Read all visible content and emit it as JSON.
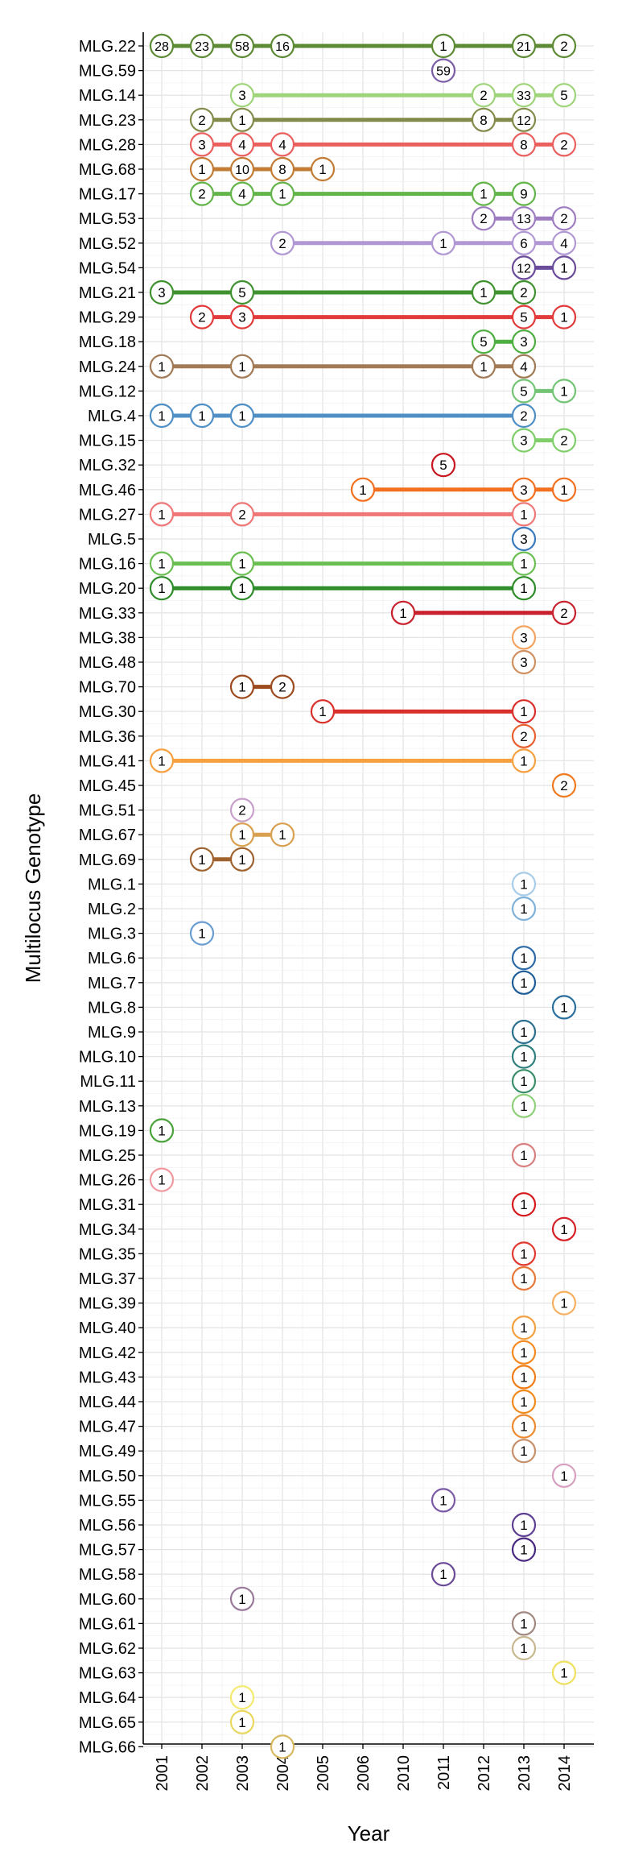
{
  "chart_data": {
    "type": "scatter",
    "xlabel": "Year",
    "ylabel": "Multilocus Genotype",
    "x_categories": [
      "2001",
      "2002",
      "2003",
      "2004",
      "2005",
      "2006",
      "2010",
      "2011",
      "2012",
      "2013",
      "2014"
    ],
    "grid": true,
    "legend": "none",
    "series": [
      {
        "name": "MLG.22",
        "color": "#5d8a35",
        "points": [
          {
            "x": "2001",
            "y": 28
          },
          {
            "x": "2002",
            "y": 23
          },
          {
            "x": "2003",
            "y": 58
          },
          {
            "x": "2004",
            "y": 16
          },
          {
            "x": "2011",
            "y": 1
          },
          {
            "x": "2013",
            "y": 21
          },
          {
            "x": "2014",
            "y": 2
          }
        ]
      },
      {
        "name": "MLG.59",
        "color": "#7b5ea7",
        "points": [
          {
            "x": "2011",
            "y": 59
          }
        ]
      },
      {
        "name": "MLG.14",
        "color": "#9fd47a",
        "points": [
          {
            "x": "2003",
            "y": 3
          },
          {
            "x": "2012",
            "y": 2
          },
          {
            "x": "2013",
            "y": 33
          },
          {
            "x": "2014",
            "y": 5
          }
        ]
      },
      {
        "name": "MLG.23",
        "color": "#838a4a",
        "points": [
          {
            "x": "2002",
            "y": 2
          },
          {
            "x": "2003",
            "y": 1
          },
          {
            "x": "2012",
            "y": 8
          },
          {
            "x": "2013",
            "y": 12
          }
        ]
      },
      {
        "name": "MLG.28",
        "color": "#e9605f",
        "points": [
          {
            "x": "2002",
            "y": 3
          },
          {
            "x": "2003",
            "y": 4
          },
          {
            "x": "2004",
            "y": 4
          },
          {
            "x": "2013",
            "y": 8
          },
          {
            "x": "2014",
            "y": 2
          }
        ]
      },
      {
        "name": "MLG.68",
        "color": "#c27c35",
        "points": [
          {
            "x": "2002",
            "y": 1
          },
          {
            "x": "2003",
            "y": 10
          },
          {
            "x": "2004",
            "y": 8
          },
          {
            "x": "2005",
            "y": 1
          }
        ]
      },
      {
        "name": "MLG.17",
        "color": "#63b44a",
        "points": [
          {
            "x": "2002",
            "y": 2
          },
          {
            "x": "2003",
            "y": 4
          },
          {
            "x": "2004",
            "y": 1
          },
          {
            "x": "2012",
            "y": 1
          },
          {
            "x": "2013",
            "y": 9
          }
        ]
      },
      {
        "name": "MLG.53",
        "color": "#9e7dc1",
        "points": [
          {
            "x": "2012",
            "y": 2
          },
          {
            "x": "2013",
            "y": 13
          },
          {
            "x": "2014",
            "y": 2
          }
        ]
      },
      {
        "name": "MLG.52",
        "color": "#b197d4",
        "points": [
          {
            "x": "2004",
            "y": 2
          },
          {
            "x": "2011",
            "y": 1
          },
          {
            "x": "2013",
            "y": 6
          },
          {
            "x": "2014",
            "y": 4
          }
        ]
      },
      {
        "name": "MLG.54",
        "color": "#6b4c9a",
        "points": [
          {
            "x": "2013",
            "y": 12
          },
          {
            "x": "2014",
            "y": 1
          }
        ]
      },
      {
        "name": "MLG.21",
        "color": "#3f922f",
        "points": [
          {
            "x": "2001",
            "y": 3
          },
          {
            "x": "2003",
            "y": 5
          },
          {
            "x": "2012",
            "y": 1
          },
          {
            "x": "2013",
            "y": 2
          }
        ]
      },
      {
        "name": "MLG.29",
        "color": "#e23b3b",
        "points": [
          {
            "x": "2002",
            "y": 2
          },
          {
            "x": "2003",
            "y": 3
          },
          {
            "x": "2013",
            "y": 5
          },
          {
            "x": "2014",
            "y": 1
          }
        ]
      },
      {
        "name": "MLG.18",
        "color": "#4fae41",
        "points": [
          {
            "x": "2012",
            "y": 5
          },
          {
            "x": "2013",
            "y": 3
          }
        ]
      },
      {
        "name": "MLG.24",
        "color": "#a27a55",
        "points": [
          {
            "x": "2001",
            "y": 1
          },
          {
            "x": "2003",
            "y": 1
          },
          {
            "x": "2012",
            "y": 1
          },
          {
            "x": "2013",
            "y": 4
          }
        ]
      },
      {
        "name": "MLG.12",
        "color": "#74c476",
        "points": [
          {
            "x": "2013",
            "y": 5
          },
          {
            "x": "2014",
            "y": 1
          }
        ]
      },
      {
        "name": "MLG.4",
        "color": "#4f8fc4",
        "points": [
          {
            "x": "2001",
            "y": 1
          },
          {
            "x": "2002",
            "y": 1
          },
          {
            "x": "2003",
            "y": 1
          },
          {
            "x": "2013",
            "y": 2
          }
        ]
      },
      {
        "name": "MLG.15",
        "color": "#7fce6a",
        "points": [
          {
            "x": "2013",
            "y": 3
          },
          {
            "x": "2014",
            "y": 2
          }
        ]
      },
      {
        "name": "MLG.32",
        "color": "#c9151e",
        "points": [
          {
            "x": "2011",
            "y": 5
          }
        ]
      },
      {
        "name": "MLG.46",
        "color": "#f37021",
        "points": [
          {
            "x": "2006",
            "y": 1
          },
          {
            "x": "2013",
            "y": 3
          },
          {
            "x": "2014",
            "y": 1
          }
        ]
      },
      {
        "name": "MLG.27",
        "color": "#ef7777",
        "points": [
          {
            "x": "2001",
            "y": 1
          },
          {
            "x": "2003",
            "y": 2
          },
          {
            "x": "2013",
            "y": 1
          }
        ]
      },
      {
        "name": "MLG.5",
        "color": "#3a7bbf",
        "points": [
          {
            "x": "2013",
            "y": 3
          }
        ]
      },
      {
        "name": "MLG.16",
        "color": "#6bbf52",
        "points": [
          {
            "x": "2001",
            "y": 1
          },
          {
            "x": "2003",
            "y": 1
          },
          {
            "x": "2013",
            "y": 1
          }
        ]
      },
      {
        "name": "MLG.20",
        "color": "#2f8c2a",
        "points": [
          {
            "x": "2001",
            "y": 1
          },
          {
            "x": "2003",
            "y": 1
          },
          {
            "x": "2013",
            "y": 1
          }
        ]
      },
      {
        "name": "MLG.33",
        "color": "#c8202c",
        "points": [
          {
            "x": "2010",
            "y": 1
          },
          {
            "x": "2014",
            "y": 2
          }
        ]
      },
      {
        "name": "MLG.38",
        "color": "#f4a460",
        "points": [
          {
            "x": "2013",
            "y": 3
          }
        ]
      },
      {
        "name": "MLG.48",
        "color": "#d09060",
        "points": [
          {
            "x": "2013",
            "y": 3
          }
        ]
      },
      {
        "name": "MLG.70",
        "color": "#9c4a1e",
        "points": [
          {
            "x": "2003",
            "y": 1
          },
          {
            "x": "2004",
            "y": 2
          }
        ]
      },
      {
        "name": "MLG.30",
        "color": "#d9302b",
        "points": [
          {
            "x": "2005",
            "y": 1
          },
          {
            "x": "2013",
            "y": 1
          }
        ]
      },
      {
        "name": "MLG.36",
        "color": "#e86030",
        "points": [
          {
            "x": "2013",
            "y": 2
          }
        ]
      },
      {
        "name": "MLG.41",
        "color": "#f6a040",
        "points": [
          {
            "x": "2001",
            "y": 1
          },
          {
            "x": "2013",
            "y": 1
          }
        ]
      },
      {
        "name": "MLG.45",
        "color": "#f07a20",
        "points": [
          {
            "x": "2014",
            "y": 2
          }
        ]
      },
      {
        "name": "MLG.51",
        "color": "#c8a0cc",
        "points": [
          {
            "x": "2003",
            "y": 2
          }
        ]
      },
      {
        "name": "MLG.67",
        "color": "#d8a050",
        "points": [
          {
            "x": "2003",
            "y": 1
          },
          {
            "x": "2004",
            "y": 1
          }
        ]
      },
      {
        "name": "MLG.69",
        "color": "#a0632e",
        "points": [
          {
            "x": "2002",
            "y": 1
          },
          {
            "x": "2003",
            "y": 1
          }
        ]
      },
      {
        "name": "MLG.1",
        "color": "#a9cde8",
        "points": [
          {
            "x": "2013",
            "y": 1
          }
        ]
      },
      {
        "name": "MLG.2",
        "color": "#7fb2da",
        "points": [
          {
            "x": "2013",
            "y": 1
          }
        ]
      },
      {
        "name": "MLG.3",
        "color": "#6a9ed2",
        "points": [
          {
            "x": "2002",
            "y": 1
          }
        ]
      },
      {
        "name": "MLG.6",
        "color": "#2c6aa8",
        "points": [
          {
            "x": "2013",
            "y": 1
          }
        ]
      },
      {
        "name": "MLG.7",
        "color": "#1f5d99",
        "points": [
          {
            "x": "2013",
            "y": 1
          }
        ]
      },
      {
        "name": "MLG.8",
        "color": "#2a6f9e",
        "points": [
          {
            "x": "2014",
            "y": 1
          }
        ]
      },
      {
        "name": "MLG.9",
        "color": "#2b6f8f",
        "points": [
          {
            "x": "2013",
            "y": 1
          }
        ]
      },
      {
        "name": "MLG.10",
        "color": "#2f7f7f",
        "points": [
          {
            "x": "2013",
            "y": 1
          }
        ]
      },
      {
        "name": "MLG.11",
        "color": "#3a8f6a",
        "points": [
          {
            "x": "2013",
            "y": 1
          }
        ]
      },
      {
        "name": "MLG.13",
        "color": "#8fd07a",
        "points": [
          {
            "x": "2013",
            "y": 1
          }
        ]
      },
      {
        "name": "MLG.19",
        "color": "#4aa33a",
        "points": [
          {
            "x": "2001",
            "y": 1
          }
        ]
      },
      {
        "name": "MLG.25",
        "color": "#d88080",
        "points": [
          {
            "x": "2013",
            "y": 1
          }
        ]
      },
      {
        "name": "MLG.26",
        "color": "#f09aa0",
        "points": [
          {
            "x": "2001",
            "y": 1
          }
        ]
      },
      {
        "name": "MLG.31",
        "color": "#d7191c",
        "points": [
          {
            "x": "2013",
            "y": 1
          }
        ]
      },
      {
        "name": "MLG.34",
        "color": "#d62025",
        "points": [
          {
            "x": "2014",
            "y": 1
          }
        ]
      },
      {
        "name": "MLG.35",
        "color": "#e03a30",
        "points": [
          {
            "x": "2013",
            "y": 1
          }
        ]
      },
      {
        "name": "MLG.37",
        "color": "#e87838",
        "points": [
          {
            "x": "2013",
            "y": 1
          }
        ]
      },
      {
        "name": "MLG.39",
        "color": "#f8b060",
        "points": [
          {
            "x": "2014",
            "y": 1
          }
        ]
      },
      {
        "name": "MLG.40",
        "color": "#f4a040",
        "points": [
          {
            "x": "2013",
            "y": 1
          }
        ]
      },
      {
        "name": "MLG.42",
        "color": "#f58a20",
        "points": [
          {
            "x": "2013",
            "y": 1
          }
        ]
      },
      {
        "name": "MLG.43",
        "color": "#f07e18",
        "points": [
          {
            "x": "2013",
            "y": 1
          }
        ]
      },
      {
        "name": "MLG.44",
        "color": "#f08a1c",
        "points": [
          {
            "x": "2013",
            "y": 1
          }
        ]
      },
      {
        "name": "MLG.47",
        "color": "#ee8a30",
        "points": [
          {
            "x": "2013",
            "y": 1
          }
        ]
      },
      {
        "name": "MLG.49",
        "color": "#c8906a",
        "points": [
          {
            "x": "2013",
            "y": 1
          }
        ]
      },
      {
        "name": "MLG.50",
        "color": "#d8a0c0",
        "points": [
          {
            "x": "2014",
            "y": 1
          }
        ]
      },
      {
        "name": "MLG.55",
        "color": "#7d5aa8",
        "points": [
          {
            "x": "2011",
            "y": 1
          }
        ]
      },
      {
        "name": "MLG.56",
        "color": "#5e3f94",
        "points": [
          {
            "x": "2013",
            "y": 1
          }
        ]
      },
      {
        "name": "MLG.57",
        "color": "#4a2a80",
        "points": [
          {
            "x": "2013",
            "y": 1
          }
        ]
      },
      {
        "name": "MLG.58",
        "color": "#6a4a96",
        "points": [
          {
            "x": "2011",
            "y": 1
          }
        ]
      },
      {
        "name": "MLG.60",
        "color": "#9a7a9a",
        "points": [
          {
            "x": "2003",
            "y": 1
          }
        ]
      },
      {
        "name": "MLG.61",
        "color": "#a08880",
        "points": [
          {
            "x": "2013",
            "y": 1
          }
        ]
      },
      {
        "name": "MLG.62",
        "color": "#c8b890",
        "points": [
          {
            "x": "2013",
            "y": 1
          }
        ]
      },
      {
        "name": "MLG.63",
        "color": "#f0e060",
        "points": [
          {
            "x": "2014",
            "y": 1
          }
        ]
      },
      {
        "name": "MLG.64",
        "color": "#f4ea70",
        "points": [
          {
            "x": "2003",
            "y": 1
          }
        ]
      },
      {
        "name": "MLG.65",
        "color": "#e8d860",
        "points": [
          {
            "x": "2003",
            "y": 1
          }
        ]
      },
      {
        "name": "MLG.66",
        "color": "#d8b860",
        "points": [
          {
            "x": "2004",
            "y": 1
          }
        ]
      }
    ]
  }
}
